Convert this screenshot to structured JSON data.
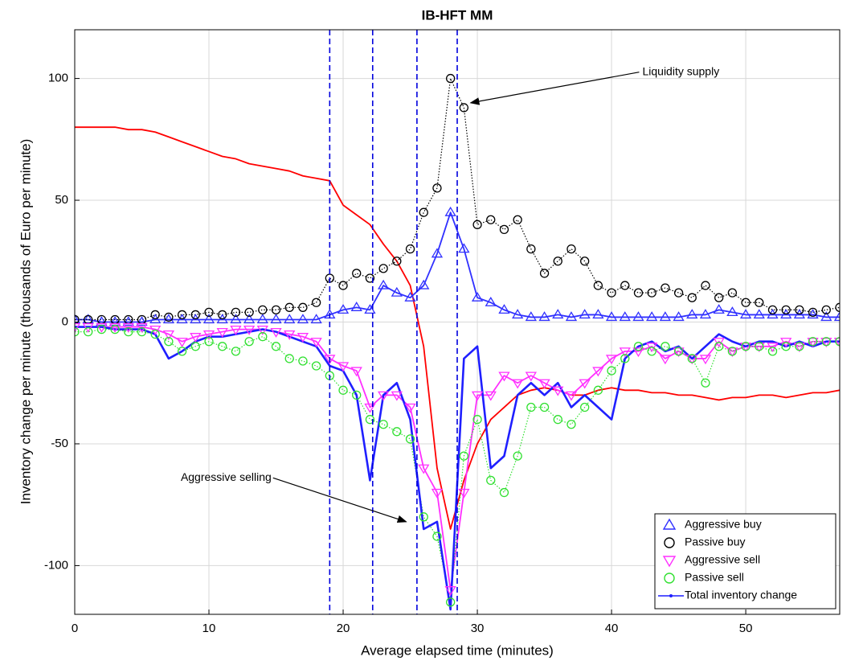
{
  "chart_data": {
    "type": "line",
    "title": "IB-HFT MM",
    "xlabel": "Average elapsed time (minutes)",
    "ylabel": "Inventory change per minute (thousands of Euro per minute)",
    "xlim": [
      0,
      57
    ],
    "ylim": [
      -120,
      120
    ],
    "xticks": [
      0,
      10,
      20,
      30,
      40,
      50
    ],
    "yticks": [
      -100,
      -50,
      0,
      50,
      100
    ],
    "grid": true,
    "legend": "lower right",
    "vlines": [
      19,
      22.2,
      25.5,
      28.5
    ],
    "vline_color": "#0000dd",
    "x": [
      0,
      1,
      2,
      3,
      4,
      5,
      6,
      7,
      8,
      9,
      10,
      11,
      12,
      13,
      14,
      15,
      16,
      17,
      18,
      19,
      20,
      21,
      22,
      23,
      24,
      25,
      26,
      27,
      28,
      29,
      30,
      31,
      32,
      33,
      34,
      35,
      36,
      37,
      38,
      39,
      40,
      41,
      42,
      43,
      44,
      45,
      46,
      47,
      48,
      49,
      50,
      51,
      52,
      53,
      54,
      55,
      56,
      57
    ],
    "series": [
      {
        "color": "#ff0000",
        "linestyle": "solid",
        "marker": "none",
        "values": [
          80,
          80,
          80,
          80,
          79,
          79,
          78,
          76,
          74,
          72,
          70,
          68,
          67,
          65,
          64,
          63,
          62,
          60,
          59,
          58,
          48,
          44,
          40,
          32,
          25,
          15,
          -10,
          -60,
          -85,
          -65,
          -50,
          -40,
          -35,
          -30,
          -28,
          -27,
          -28,
          -30,
          -30,
          -28,
          -27,
          -28,
          -28,
          -29,
          -29,
          -30,
          -30,
          -31,
          -32,
          -31,
          -31,
          -30,
          -30,
          -31,
          -30,
          -29,
          -29,
          -28
        ]
      },
      {
        "name": "Aggressive buy",
        "color": "#3030ff",
        "linestyle": "solid",
        "marker": "triangle-up",
        "values": [
          1,
          1,
          0,
          0,
          0,
          0,
          1,
          1,
          1,
          1,
          1,
          1,
          1,
          1,
          1,
          1,
          1,
          1,
          1,
          3,
          5,
          6,
          5,
          15,
          12,
          10,
          15,
          28,
          45,
          30,
          10,
          8,
          5,
          3,
          2,
          2,
          3,
          2,
          3,
          3,
          2,
          2,
          2,
          2,
          2,
          2,
          3,
          3,
          5,
          4,
          3,
          3,
          3,
          3,
          3,
          3,
          2,
          2
        ]
      },
      {
        "name": "Passive buy",
        "color": "#000000",
        "linestyle": "dotted",
        "marker": "circle",
        "values": [
          1,
          1,
          1,
          1,
          1,
          1,
          3,
          2,
          3,
          3,
          4,
          3,
          4,
          4,
          5,
          5,
          6,
          6,
          8,
          18,
          15,
          20,
          18,
          22,
          25,
          30,
          45,
          55,
          100,
          88,
          40,
          42,
          38,
          42,
          30,
          20,
          25,
          30,
          25,
          15,
          12,
          15,
          12,
          12,
          14,
          12,
          10,
          15,
          10,
          12,
          8,
          8,
          5,
          5,
          5,
          4,
          5,
          6
        ]
      },
      {
        "name": "Aggressive sell",
        "color": "#ff30ff",
        "linestyle": "solid",
        "marker": "triangle-down",
        "values": [
          -2,
          -2,
          -2,
          -2,
          -2,
          -2,
          -3,
          -5,
          -8,
          -6,
          -5,
          -4,
          -3,
          -3,
          -3,
          -4,
          -5,
          -6,
          -8,
          -15,
          -18,
          -20,
          -35,
          -30,
          -30,
          -35,
          -60,
          -70,
          -110,
          -70,
          -30,
          -30,
          -22,
          -25,
          -22,
          -25,
          -28,
          -30,
          -25,
          -20,
          -15,
          -12,
          -12,
          -10,
          -15,
          -12,
          -15,
          -15,
          -8,
          -12,
          -10,
          -10,
          -10,
          -8,
          -10,
          -8,
          -8,
          -8
        ]
      },
      {
        "name": "Passive sell",
        "color": "#30e030",
        "linestyle": "dotted",
        "marker": "circle",
        "values": [
          -4,
          -4,
          -3,
          -3,
          -4,
          -4,
          -5,
          -8,
          -12,
          -10,
          -8,
          -10,
          -12,
          -8,
          -6,
          -10,
          -15,
          -16,
          -18,
          -22,
          -28,
          -30,
          -40,
          -42,
          -45,
          -48,
          -80,
          -88,
          -115,
          -55,
          -40,
          -65,
          -70,
          -55,
          -35,
          -35,
          -40,
          -42,
          -35,
          -28,
          -20,
          -15,
          -10,
          -12,
          -10,
          -12,
          -15,
          -25,
          -10,
          -12,
          -10,
          -10,
          -12,
          -10,
          -10,
          -8,
          -8,
          -8
        ]
      },
      {
        "name": "Total inventory change",
        "color": "#1f1fff",
        "linestyle": "thick",
        "marker": "dot",
        "values": [
          -2,
          -2,
          -2,
          -3,
          -3,
          -3,
          -5,
          -15,
          -12,
          -8,
          -6,
          -6,
          -5,
          -4,
          -3,
          -4,
          -6,
          -8,
          -10,
          -18,
          -20,
          -30,
          -65,
          -30,
          -25,
          -40,
          -85,
          -82,
          -118,
          -15,
          -10,
          -60,
          -55,
          -30,
          -25,
          -30,
          -25,
          -35,
          -30,
          -35,
          -40,
          -15,
          -10,
          -8,
          -12,
          -10,
          -15,
          -10,
          -5,
          -8,
          -10,
          -8,
          -8,
          -10,
          -8,
          -10,
          -8,
          -8
        ]
      }
    ],
    "annotations": [
      {
        "text": "Liquidity supply",
        "x": 42.3,
        "y": 102.6,
        "arrow_x": 29.5,
        "arrow_y": 90
      },
      {
        "text": "Aggressive selling",
        "x": 7.9,
        "y": -64,
        "arrow_x": 24.7,
        "arrow_y": -82
      }
    ]
  }
}
